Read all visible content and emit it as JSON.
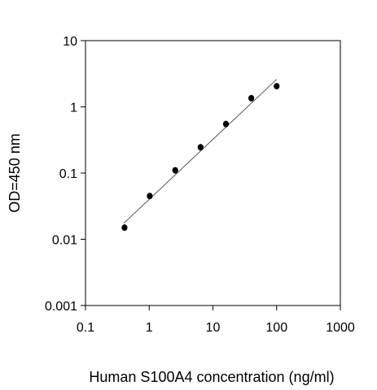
{
  "chart_data": {
    "type": "scatter",
    "title": "",
    "xlabel": "Human S100A4 concentration (ng/ml)",
    "ylabel": "OD=450 nm",
    "x_scale": "log",
    "y_scale": "log",
    "xlim": [
      0.1,
      1000
    ],
    "ylim": [
      0.001,
      10
    ],
    "x_ticks": [
      "0.1",
      "1",
      "10",
      "100",
      "1000"
    ],
    "y_ticks": [
      "0.001",
      "0.01",
      "0.1",
      "1",
      "10"
    ],
    "grid": false,
    "legend": "none",
    "series": [
      {
        "points": [
          {
            "x": 0.41,
            "y": 0.015
          },
          {
            "x": 1.02,
            "y": 0.045
          },
          {
            "x": 2.56,
            "y": 0.11
          },
          {
            "x": 6.4,
            "y": 0.245
          },
          {
            "x": 16.0,
            "y": 0.55
          },
          {
            "x": 40.0,
            "y": 1.35
          },
          {
            "x": 100.0,
            "y": 2.05
          }
        ],
        "marker_color": "#000000"
      }
    ],
    "fit_line": {
      "x": [
        0.4,
        100.0
      ],
      "y": [
        0.0175,
        2.6
      ]
    }
  }
}
